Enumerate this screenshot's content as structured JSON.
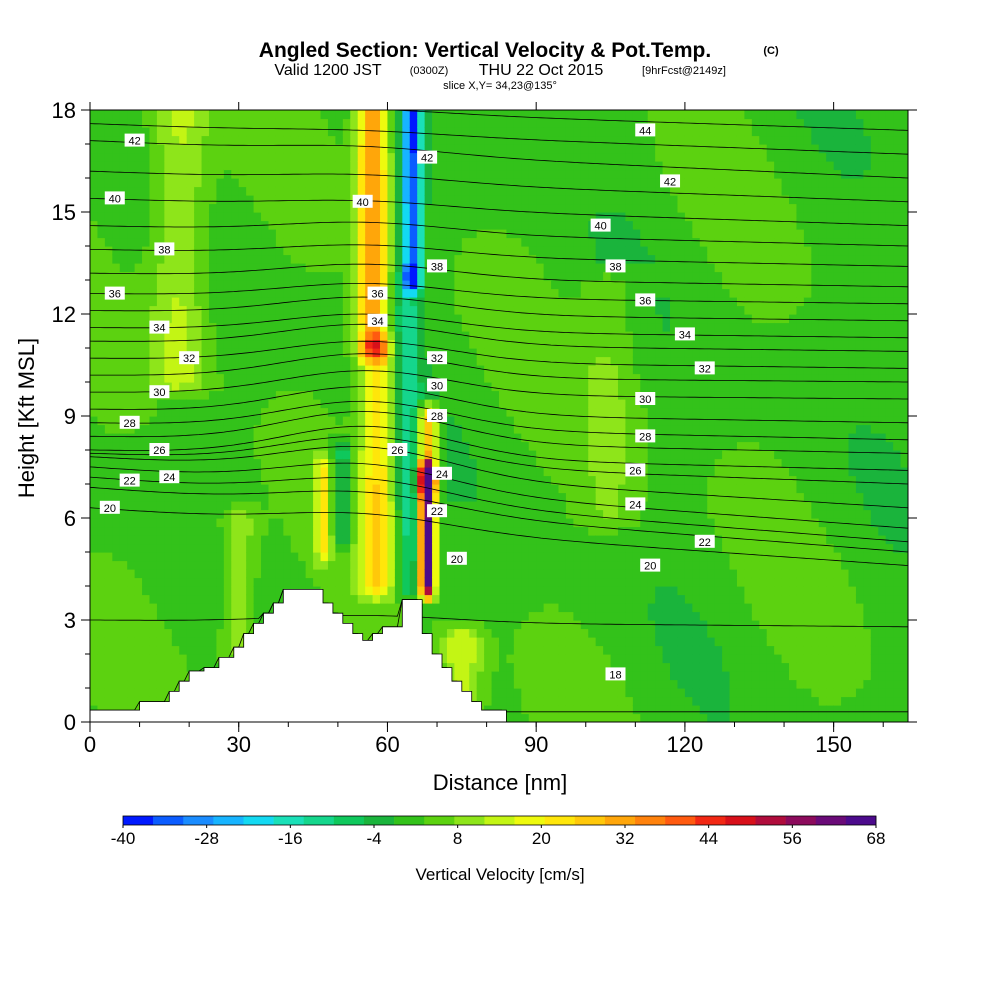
{
  "chart_data": {
    "type": "heatmap",
    "title": "Angled Section: Vertical Velocity & Pot.Temp.",
    "title_suffix": "(C)",
    "subtitle_prefix": "Valid 1200 JST",
    "subtitle_utc": "(0300Z)",
    "subtitle_date": "THU 22 Oct 2015",
    "subtitle_fcst": "[9hrFcst@2149z]",
    "slice_label": "slice X,Y= 34,23@135°",
    "xlabel": "Distance [nm]",
    "ylabel": "Height [Kft MSL]",
    "xlim": [
      0,
      165
    ],
    "ylim": [
      0,
      18
    ],
    "x_ticks": [
      0,
      30,
      60,
      90,
      120,
      150
    ],
    "y_ticks": [
      0,
      3,
      6,
      9,
      12,
      15,
      18
    ],
    "colorbar": {
      "label": "Vertical Velocity [cm/s]",
      "min": -40,
      "max": 68,
      "tick_labels": [
        "-40",
        "-28",
        "-16",
        "-4",
        "8",
        "20",
        "32",
        "44",
        "56",
        "68"
      ],
      "colors": [
        "#0019ff",
        "#0b5cff",
        "#1a8cff",
        "#17b4ff",
        "#13d9f2",
        "#1ae0b8",
        "#15d68c",
        "#0fc85c",
        "#1ab43c",
        "#33c21a",
        "#5cd210",
        "#8ee51a",
        "#c3f514",
        "#eefa0e",
        "#ffe60a",
        "#ffc80a",
        "#ffa60a",
        "#ff820c",
        "#ff5a10",
        "#f22814",
        "#d8101a",
        "#b00c3c",
        "#8c0a5c",
        "#6a0a78",
        "#4c0a8c"
      ]
    },
    "terrain": [
      [
        0,
        0.35
      ],
      [
        10,
        0.35
      ],
      [
        10,
        0.6
      ],
      [
        14,
        0.6
      ],
      [
        14,
        0.6
      ],
      [
        16,
        0.6
      ],
      [
        16,
        0.9
      ],
      [
        18,
        0.9
      ],
      [
        18,
        1.2
      ],
      [
        20,
        1.2
      ],
      [
        20,
        1.5
      ],
      [
        23,
        1.5
      ],
      [
        23,
        1.6
      ],
      [
        26,
        1.6
      ],
      [
        26,
        1.9
      ],
      [
        29,
        1.9
      ],
      [
        29,
        2.2
      ],
      [
        31,
        2.2
      ],
      [
        31,
        2.6
      ],
      [
        33,
        2.6
      ],
      [
        33,
        2.9
      ],
      [
        35,
        2.9
      ],
      [
        35,
        3.2
      ],
      [
        37,
        3.2
      ],
      [
        37,
        3.5
      ],
      [
        39,
        3.5
      ],
      [
        39,
        3.9
      ],
      [
        43,
        3.9
      ],
      [
        43,
        3.9
      ],
      [
        47,
        3.9
      ],
      [
        47,
        3.5
      ],
      [
        49,
        3.5
      ],
      [
        49,
        3.2
      ],
      [
        51,
        3.2
      ],
      [
        51,
        2.9
      ],
      [
        53,
        2.9
      ],
      [
        53,
        2.6
      ],
      [
        55,
        2.6
      ],
      [
        55,
        2.4
      ],
      [
        57,
        2.4
      ],
      [
        57,
        2.6
      ],
      [
        59,
        2.6
      ],
      [
        59,
        2.8
      ],
      [
        63,
        2.8
      ],
      [
        63,
        3.6
      ],
      [
        67,
        3.6
      ],
      [
        67,
        2.6
      ],
      [
        69,
        2.6
      ],
      [
        69,
        2.0
      ],
      [
        71,
        2.0
      ],
      [
        71,
        1.6
      ],
      [
        73,
        1.6
      ],
      [
        73,
        1.2
      ],
      [
        75,
        1.2
      ],
      [
        75,
        0.9
      ],
      [
        77,
        0.9
      ],
      [
        77,
        0.6
      ],
      [
        79,
        0.6
      ],
      [
        79,
        0.35
      ],
      [
        84,
        0.35
      ],
      [
        84,
        0
      ],
      [
        165,
        0
      ]
    ],
    "velocity_features": [
      {
        "x": 57,
        "z0": 11,
        "z1": 18,
        "w": 32,
        "half_width_nm": 3.2
      },
      {
        "x": 58,
        "z0": 4,
        "z1": 11,
        "w": 22,
        "half_width_nm": 3.5
      },
      {
        "x": 65,
        "z0": 13,
        "z1": 18,
        "w": -36,
        "half_width_nm": 2.0
      },
      {
        "x": 64,
        "z0": 4,
        "z1": 13,
        "w": -14,
        "half_width_nm": 2.5
      },
      {
        "x": 51,
        "z0": 5.5,
        "z1": 8,
        "w": -12,
        "half_width_nm": 2.0
      },
      {
        "x": 47,
        "z0": 5,
        "z1": 7.5,
        "w": 18,
        "half_width_nm": 1.5
      },
      {
        "x": 68,
        "z0": 4,
        "z1": 7.3,
        "w": 66,
        "half_width_nm": 1.5
      },
      {
        "x": 68,
        "z0": 7,
        "z1": 9,
        "w": 30,
        "half_width_nm": 2.0
      },
      {
        "x": 18,
        "z0": 10,
        "z1": 18,
        "w": 12,
        "half_width_nm": 6.0
      },
      {
        "x": 30,
        "z0": 2,
        "z1": 6,
        "w": 10,
        "half_width_nm": 4.0
      },
      {
        "x": 105,
        "z0": 6,
        "z1": 13,
        "w": 6,
        "half_width_nm": 6.0
      },
      {
        "x": 75,
        "z0": 0.5,
        "z1": 2.5,
        "w": 14,
        "half_width_nm": 4.0
      }
    ],
    "isentropes": [
      {
        "theta": 18,
        "left": 0.3,
        "right": 0.3,
        "hill_lift": 0,
        "label_x": 106,
        "label_z": 1.4
      },
      {
        "theta": 19,
        "left": 3.0,
        "right": 2.8,
        "hill_lift": 0.2,
        "label_x": null,
        "label_z": null
      },
      {
        "theta": 20,
        "left": 6.3,
        "right": 4.6,
        "hill_lift": 0.4,
        "label_x": 4,
        "label_z": 6.3
      },
      {
        "theta": 21,
        "left": 6.9,
        "right": 5.0,
        "hill_lift": 0.5,
        "label_x": null,
        "label_z": null
      },
      {
        "theta": 22,
        "left": 7.2,
        "right": 5.3,
        "hill_lift": 0.6,
        "label_x": 8,
        "label_z": 7.1
      },
      {
        "theta": 23,
        "left": 7.5,
        "right": 5.7,
        "hill_lift": 0.7,
        "label_x": null,
        "label_z": null
      },
      {
        "theta": 24,
        "left": 7.8,
        "right": 6.3,
        "hill_lift": 0.8,
        "label_x": 16,
        "label_z": 7.2
      },
      {
        "theta": 25,
        "left": 7.9,
        "right": 7.0,
        "hill_lift": 0.8,
        "label_x": null,
        "label_z": null
      },
      {
        "theta": 26,
        "left": 8.0,
        "right": 7.4,
        "hill_lift": 0.9,
        "label_x": 14,
        "label_z": 8.0
      },
      {
        "theta": 27,
        "left": 8.4,
        "right": 7.9,
        "hill_lift": 0.9,
        "label_x": null,
        "label_z": null
      },
      {
        "theta": 28,
        "left": 8.8,
        "right": 8.3,
        "hill_lift": 0.8,
        "label_x": 8,
        "label_z": 8.8
      },
      {
        "theta": 29,
        "left": 9.2,
        "right": 8.8,
        "hill_lift": 0.8,
        "label_x": null,
        "label_z": null
      },
      {
        "theta": 30,
        "left": 9.7,
        "right": 9.5,
        "hill_lift": 0.7,
        "label_x": 14,
        "label_z": 9.7
      },
      {
        "theta": 31,
        "left": 10.2,
        "right": 10.0,
        "hill_lift": 0.7,
        "label_x": null,
        "label_z": null
      },
      {
        "theta": 32,
        "left": 10.7,
        "right": 10.4,
        "hill_lift": 0.6,
        "label_x": 20,
        "label_z": 10.7
      },
      {
        "theta": 33,
        "left": 11.2,
        "right": 10.9,
        "hill_lift": 0.6,
        "label_x": null,
        "label_z": null
      },
      {
        "theta": 34,
        "left": 11.6,
        "right": 11.3,
        "hill_lift": 0.5,
        "label_x": 14,
        "label_z": 11.6
      },
      {
        "theta": 35,
        "left": 12.1,
        "right": 11.8,
        "hill_lift": 0.5,
        "label_x": null,
        "label_z": null
      },
      {
        "theta": 36,
        "left": 12.6,
        "right": 12.3,
        "hill_lift": 0.4,
        "label_x": 5,
        "label_z": 12.6
      },
      {
        "theta": 37,
        "left": 13.2,
        "right": 12.8,
        "hill_lift": 0.4,
        "label_x": null,
        "label_z": null
      },
      {
        "theta": 38,
        "left": 13.9,
        "right": 13.4,
        "hill_lift": 0.3,
        "label_x": 15,
        "label_z": 13.9
      },
      {
        "theta": 39,
        "left": 14.6,
        "right": 14.0,
        "hill_lift": 0.3,
        "label_x": null,
        "label_z": null
      },
      {
        "theta": 40,
        "left": 15.4,
        "right": 14.6,
        "hill_lift": 0.2,
        "label_x": 5,
        "label_z": 15.4
      },
      {
        "theta": 41,
        "left": 16.2,
        "right": 15.3,
        "hill_lift": 0.2,
        "label_x": null,
        "label_z": null
      },
      {
        "theta": 42,
        "left": 17.1,
        "right": 16.0,
        "hill_lift": 0.2,
        "label_x": 9,
        "label_z": 17.1
      },
      {
        "theta": 43,
        "left": 17.6,
        "right": 16.7,
        "hill_lift": 0.1,
        "label_x": null,
        "label_z": null
      },
      {
        "theta": 44,
        "left": 18.2,
        "right": 17.4,
        "hill_lift": 0.1,
        "label_x": 112,
        "label_z": 17.4
      }
    ],
    "extra_labels": [
      {
        "text": "42",
        "x": 68,
        "z": 16.6
      },
      {
        "text": "40",
        "x": 55,
        "z": 15.3
      },
      {
        "text": "38",
        "x": 70,
        "z": 13.4
      },
      {
        "text": "36",
        "x": 58,
        "z": 12.6
      },
      {
        "text": "34",
        "x": 58,
        "z": 11.8
      },
      {
        "text": "32",
        "x": 70,
        "z": 10.7
      },
      {
        "text": "30",
        "x": 70,
        "z": 9.9
      },
      {
        "text": "28",
        "x": 70,
        "z": 9.0
      },
      {
        "text": "26",
        "x": 62,
        "z": 8.0
      },
      {
        "text": "24",
        "x": 71,
        "z": 7.3
      },
      {
        "text": "22",
        "x": 70,
        "z": 6.2
      },
      {
        "text": "20",
        "x": 74,
        "z": 4.8
      },
      {
        "text": "40",
        "x": 103,
        "z": 14.6
      },
      {
        "text": "42",
        "x": 117,
        "z": 15.9
      },
      {
        "text": "38",
        "x": 106,
        "z": 13.4
      },
      {
        "text": "36",
        "x": 112,
        "z": 12.4
      },
      {
        "text": "34",
        "x": 120,
        "z": 11.4
      },
      {
        "text": "32",
        "x": 124,
        "z": 10.4
      },
      {
        "text": "30",
        "x": 112,
        "z": 9.5
      },
      {
        "text": "28",
        "x": 112,
        "z": 8.4
      },
      {
        "text": "26",
        "x": 110,
        "z": 7.4
      },
      {
        "text": "24",
        "x": 110,
        "z": 6.4
      },
      {
        "text": "22",
        "x": 124,
        "z": 5.3
      },
      {
        "text": "20",
        "x": 113,
        "z": 4.6
      }
    ]
  }
}
